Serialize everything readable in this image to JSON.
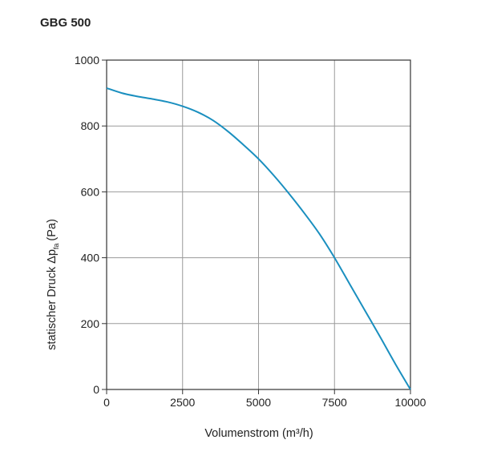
{
  "chart_data": {
    "type": "line",
    "title": "GBG 500",
    "xlabel": "Volumenstrom (m³/h)",
    "ylabel": "statischer Druck Δp",
    "ylabel_subscript": "fa",
    "ylabel_unit": "(Pa)",
    "xlim": [
      0,
      10000
    ],
    "ylim": [
      0,
      1000
    ],
    "x_ticks": [
      0,
      2500,
      5000,
      7500,
      10000
    ],
    "y_ticks": [
      0,
      200,
      400,
      600,
      800,
      1000
    ],
    "grid": true,
    "series": [
      {
        "name": "GBG 500",
        "color": "#1a8fbf",
        "x": [
          0,
          500,
          1000,
          1500,
          2000,
          2500,
          3000,
          3500,
          4000,
          4500,
          5000,
          5500,
          6000,
          6500,
          7000,
          7500,
          8000,
          8500,
          9000,
          9500,
          10000
        ],
        "y": [
          915,
          900,
          890,
          882,
          873,
          860,
          842,
          817,
          783,
          743,
          700,
          650,
          595,
          536,
          473,
          400,
          320,
          240,
          160,
          78,
          0
        ]
      }
    ]
  }
}
